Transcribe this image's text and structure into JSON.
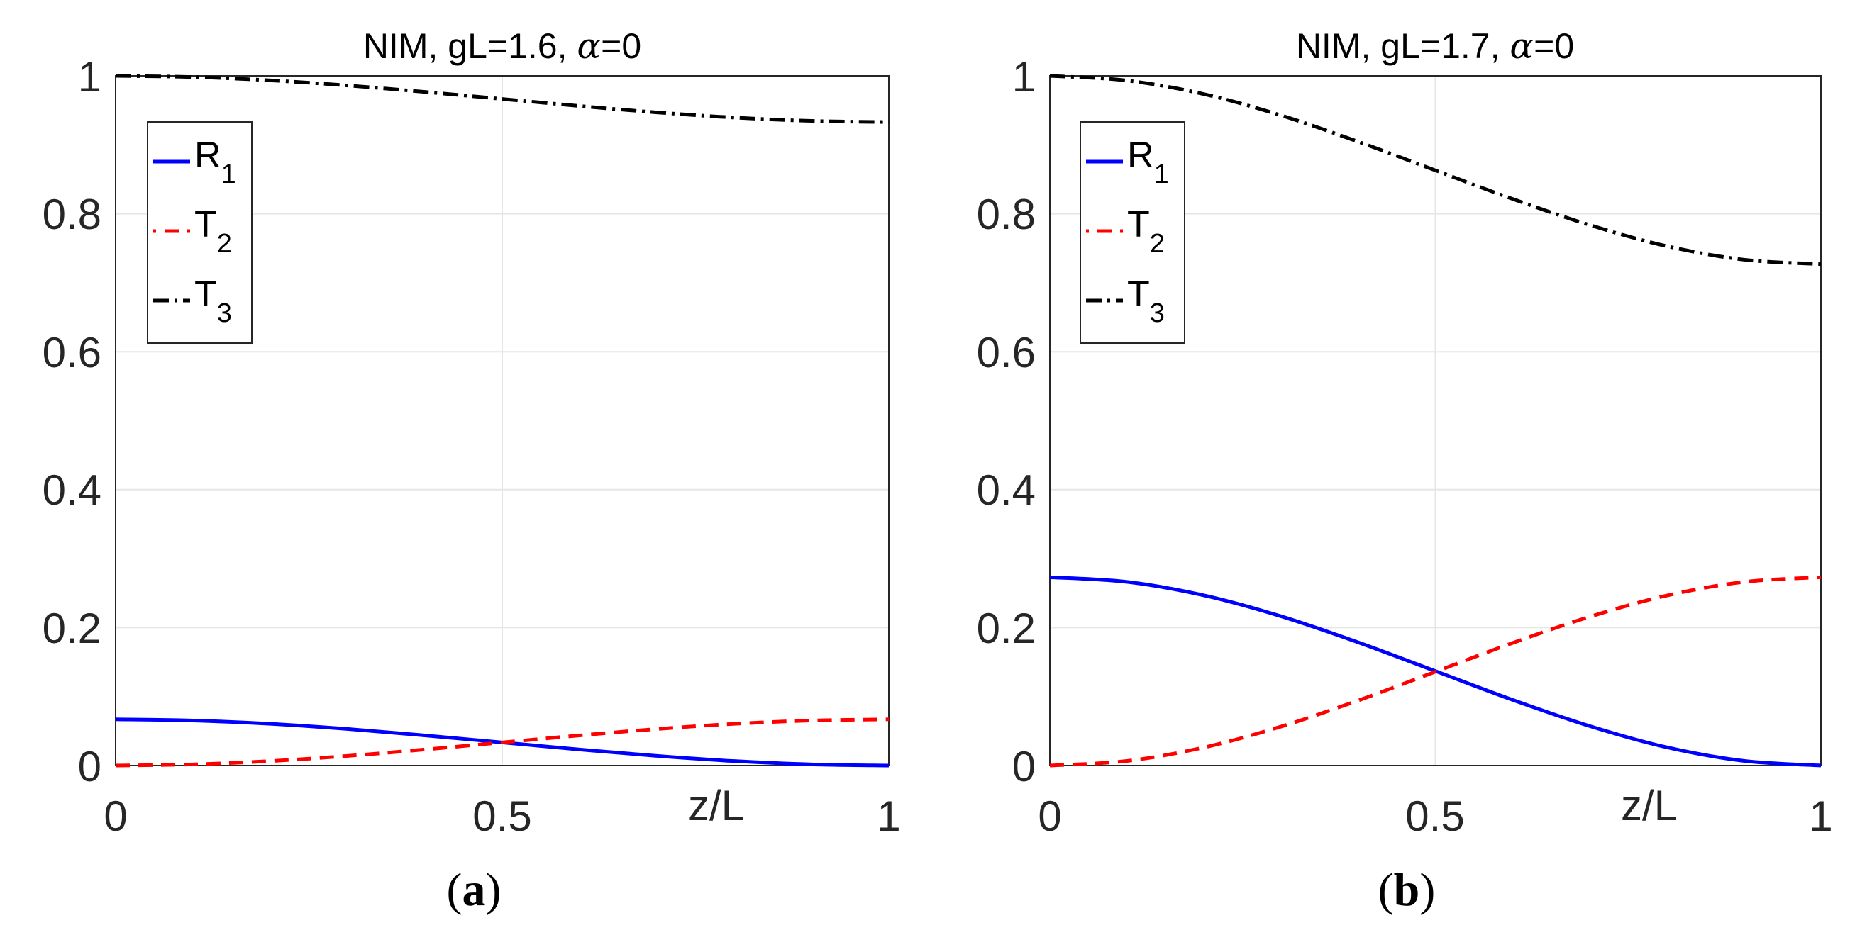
{
  "chart_data": [
    {
      "type": "line",
      "title": "NIM, gL=1.6, α=0",
      "title_text": "NIM, gL=1.6, ",
      "title_symbol": "α",
      "title_suffix": "=0",
      "xlabel": "z/L",
      "ylabel": "",
      "caption_letter": "a",
      "xlim": [
        0,
        1
      ],
      "ylim": [
        0,
        1
      ],
      "xticks": [
        0,
        0.5,
        1
      ],
      "xtick_labels": [
        "0",
        "0.5",
        "1"
      ],
      "yticks": [
        0,
        0.2,
        0.4,
        0.6,
        0.8,
        1
      ],
      "ytick_labels": [
        "0",
        "0.2",
        "0.4",
        "0.6",
        "0.8",
        "1"
      ],
      "grid": true,
      "legend_position": "upper-left",
      "x": [
        0,
        0.1,
        0.2,
        0.3,
        0.4,
        0.5,
        0.6,
        0.7,
        0.8,
        0.9,
        1.0
      ],
      "series": [
        {
          "name": "R",
          "sub": "1",
          "style": "solid",
          "color": "#0000ff",
          "values": [
            0.067,
            0.0653,
            0.0605,
            0.053,
            0.0437,
            0.0335,
            0.0233,
            0.014,
            0.0065,
            0.0017,
            0.0
          ]
        },
        {
          "name": "T",
          "sub": "2",
          "style": "dashed",
          "color": "#ff0000",
          "values": [
            0.0,
            0.0017,
            0.0065,
            0.014,
            0.0233,
            0.0335,
            0.0437,
            0.053,
            0.0605,
            0.0653,
            0.067
          ]
        },
        {
          "name": "T",
          "sub": "3",
          "style": "dashdot",
          "color": "#000000",
          "values": [
            1.0,
            0.9983,
            0.9935,
            0.986,
            0.9767,
            0.9665,
            0.9563,
            0.947,
            0.9395,
            0.9347,
            0.933
          ]
        }
      ]
    },
    {
      "type": "line",
      "title": "NIM, gL=1.7, α=0",
      "title_text": "NIM, gL=1.7, ",
      "title_symbol": "α",
      "title_suffix": "=0",
      "xlabel": "z/L",
      "ylabel": "",
      "caption_letter": "b",
      "xlim": [
        0,
        1
      ],
      "ylim": [
        0,
        1
      ],
      "xticks": [
        0,
        0.5,
        1
      ],
      "xtick_labels": [
        "0",
        "0.5",
        "1"
      ],
      "yticks": [
        0,
        0.2,
        0.4,
        0.6,
        0.8,
        1
      ],
      "ytick_labels": [
        "0",
        "0.2",
        "0.4",
        "0.6",
        "0.8",
        "1"
      ],
      "grid": true,
      "legend_position": "upper-left",
      "x": [
        0,
        0.1,
        0.2,
        0.3,
        0.4,
        0.5,
        0.6,
        0.7,
        0.8,
        0.9,
        1.0
      ],
      "series": [
        {
          "name": "R",
          "sub": "1",
          "style": "solid",
          "color": "#0000ff",
          "values": [
            0.273,
            0.2663,
            0.2467,
            0.2164,
            0.1786,
            0.137,
            0.0953,
            0.0573,
            0.0265,
            0.0068,
            0.0
          ]
        },
        {
          "name": "T",
          "sub": "2",
          "style": "dashed",
          "color": "#ff0000",
          "values": [
            0.0,
            0.0067,
            0.0263,
            0.0566,
            0.0944,
            0.136,
            0.1777,
            0.2157,
            0.2465,
            0.2662,
            0.273
          ]
        },
        {
          "name": "T",
          "sub": "3",
          "style": "dashdot",
          "color": "#000000",
          "values": [
            1.0,
            0.9932,
            0.9735,
            0.9427,
            0.9045,
            0.863,
            0.8216,
            0.7838,
            0.7531,
            0.7335,
            0.727
          ]
        }
      ]
    }
  ]
}
